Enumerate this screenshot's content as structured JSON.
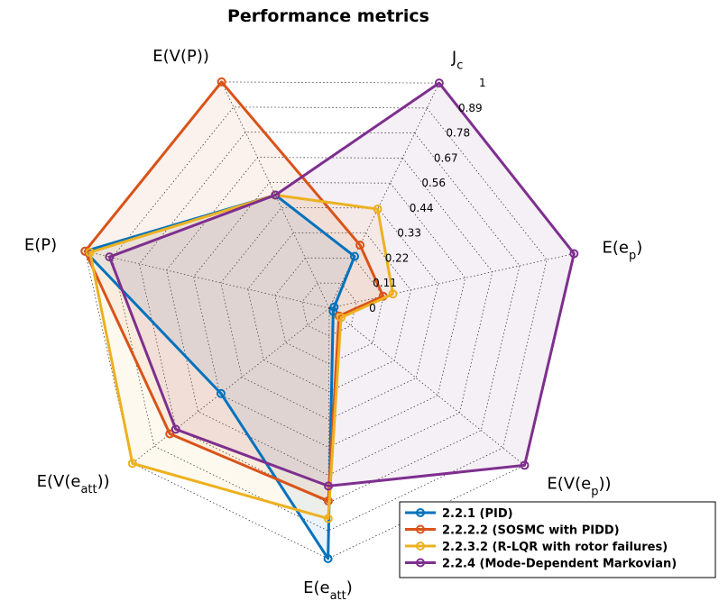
{
  "chart_data": {
    "type": "radar",
    "title": "Performance metrics",
    "axes": [
      {
        "label": "J",
        "sub": "c"
      },
      {
        "label": "E(e",
        "sub": "p",
        "close": ")"
      },
      {
        "label": "E(V(e",
        "sub": "p",
        "close": "))"
      },
      {
        "label": "E(e",
        "sub": "att",
        "close": ")"
      },
      {
        "label": "E(V(e",
        "sub": "att",
        "close": "))"
      },
      {
        "label": "E(P)"
      },
      {
        "label": "E(V(P))"
      }
    ],
    "rlim": [
      0,
      1
    ],
    "ticks": [
      "0",
      "0.11",
      "0.22",
      "0.33",
      "0.44",
      "0.56",
      "0.67",
      "0.78",
      "0.89",
      "1"
    ],
    "grid": true,
    "legend": "bottom-right",
    "series": [
      {
        "name": "2.2.1 (PID)",
        "color": "#0072BD",
        "values": [
          0.23,
          0.02,
          0.02,
          1.0,
          0.55,
          1.0,
          0.5
        ]
      },
      {
        "name": "2.2.2.2 (SOSMC with PIDD)",
        "color": "#D95319",
        "values": [
          0.28,
          0.22,
          0.05,
          0.77,
          0.81,
          1.0,
          1.0
        ]
      },
      {
        "name": "2.2.3.2 (R-LQR with rotor failures)",
        "color": "#EDB120",
        "values": [
          0.44,
          0.26,
          0.06,
          0.84,
          1.0,
          0.98,
          0.5
        ]
      },
      {
        "name": "2.2.4 (Mode-Dependent Markovian)",
        "color": "#7E2F8E",
        "values": [
          1.0,
          1.0,
          1.0,
          0.71,
          0.78,
          0.9,
          0.5
        ]
      }
    ]
  }
}
